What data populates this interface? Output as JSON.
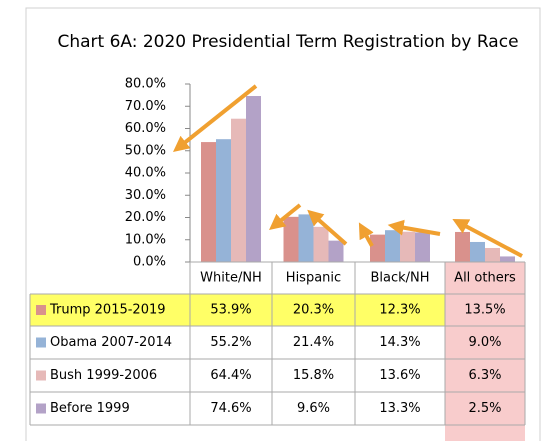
{
  "chart_data": {
    "type": "bar",
    "title": "Chart 6A: 2020 Presidential Term Registration by Race",
    "categories": [
      "White/NH",
      "Hispanic",
      "Black/NH",
      "All others"
    ],
    "series": [
      {
        "name": "Trump 2015-2019",
        "color": "#d9918c",
        "values": [
          53.9,
          20.3,
          12.3,
          13.5
        ],
        "value_labels": [
          "53.9%",
          "20.3%",
          "12.3%",
          "13.5%"
        ]
      },
      {
        "name": "Obama 2007-2014",
        "color": "#95b3d7",
        "values": [
          55.2,
          21.4,
          14.3,
          9.0
        ],
        "value_labels": [
          "55.2%",
          "21.4%",
          "14.3%",
          "9.0%"
        ]
      },
      {
        "name": "Bush 1999-2006",
        "color": "#e6b9b8",
        "values": [
          64.4,
          15.8,
          13.6,
          6.3
        ],
        "value_labels": [
          "64.4%",
          "15.8%",
          "13.6%",
          "6.3%"
        ]
      },
      {
        "name": "Before 1999",
        "color": "#b3a2c7",
        "values": [
          74.6,
          9.6,
          13.3,
          2.5
        ],
        "value_labels": [
          "74.6%",
          "9.6%",
          "13.3%",
          "2.5%"
        ]
      }
    ],
    "ylim": [
      0,
      80
    ],
    "yticks": [
      {
        "value": 0,
        "label": "0.0%"
      },
      {
        "value": 10,
        "label": "10.0%"
      },
      {
        "value": 20,
        "label": "20.0%"
      },
      {
        "value": 30,
        "label": "30.0%"
      },
      {
        "value": 40,
        "label": "40.0%"
      },
      {
        "value": 50,
        "label": "50.0%"
      },
      {
        "value": 60,
        "label": "60.0%"
      },
      {
        "value": 70,
        "label": "70.0%"
      },
      {
        "value": 80,
        "label": "80.0%"
      }
    ]
  }
}
